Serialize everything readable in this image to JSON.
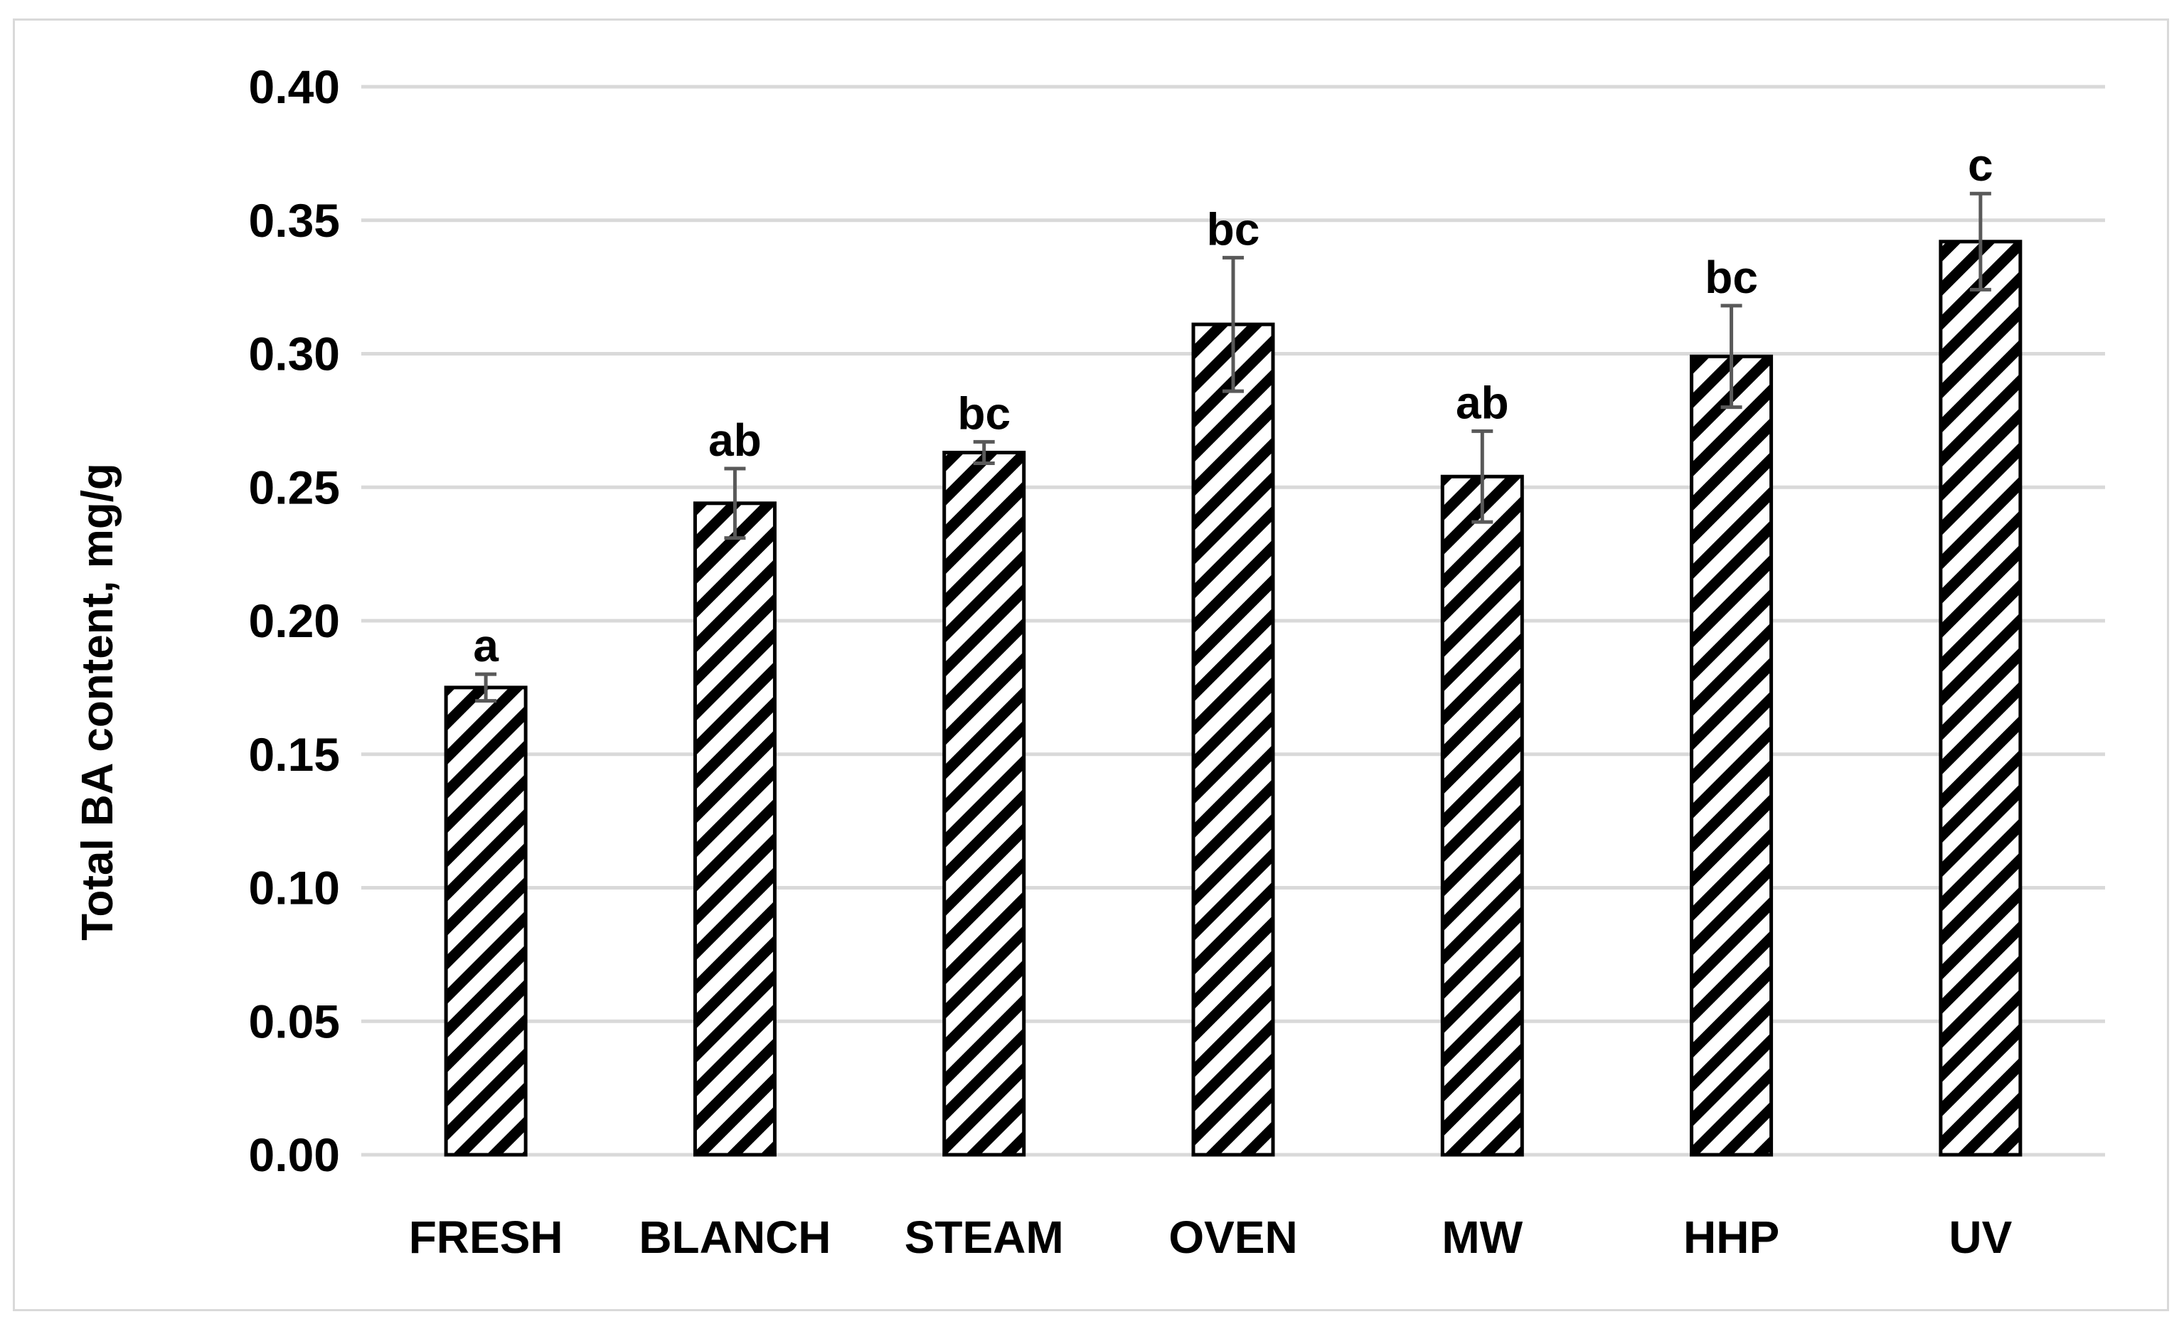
{
  "chart_data": {
    "type": "bar",
    "title": "",
    "xlabel": "",
    "ylabel": "Total BA content, mg/g",
    "ylim": [
      0,
      0.4
    ],
    "yticks": [
      0.0,
      0.05,
      0.1,
      0.15,
      0.2,
      0.25,
      0.3,
      0.35,
      0.4
    ],
    "ytick_labels": [
      "0.00",
      "0.05",
      "0.10",
      "0.15",
      "0.20",
      "0.25",
      "0.30",
      "0.35",
      "0.40"
    ],
    "grid": true,
    "legend": "none",
    "categories": [
      "FRESH",
      "BLANCH",
      "STEAM",
      "OVEN",
      "MW",
      "HHP",
      "UV"
    ],
    "values": [
      0.175,
      0.244,
      0.263,
      0.311,
      0.254,
      0.299,
      0.342
    ],
    "errors": [
      0.005,
      0.013,
      0.004,
      0.025,
      0.017,
      0.019,
      0.018
    ],
    "significance_labels": [
      "a",
      "ab",
      "bc",
      "bc",
      "ab",
      "bc",
      "c"
    ],
    "bar_fill": "diagonal-hatch",
    "colors": {
      "bar_stroke": "#000000",
      "hatch": "#000000",
      "grid": "#d9d9d9",
      "error_bar": "#595959",
      "frame": "#d9d9d9"
    }
  }
}
